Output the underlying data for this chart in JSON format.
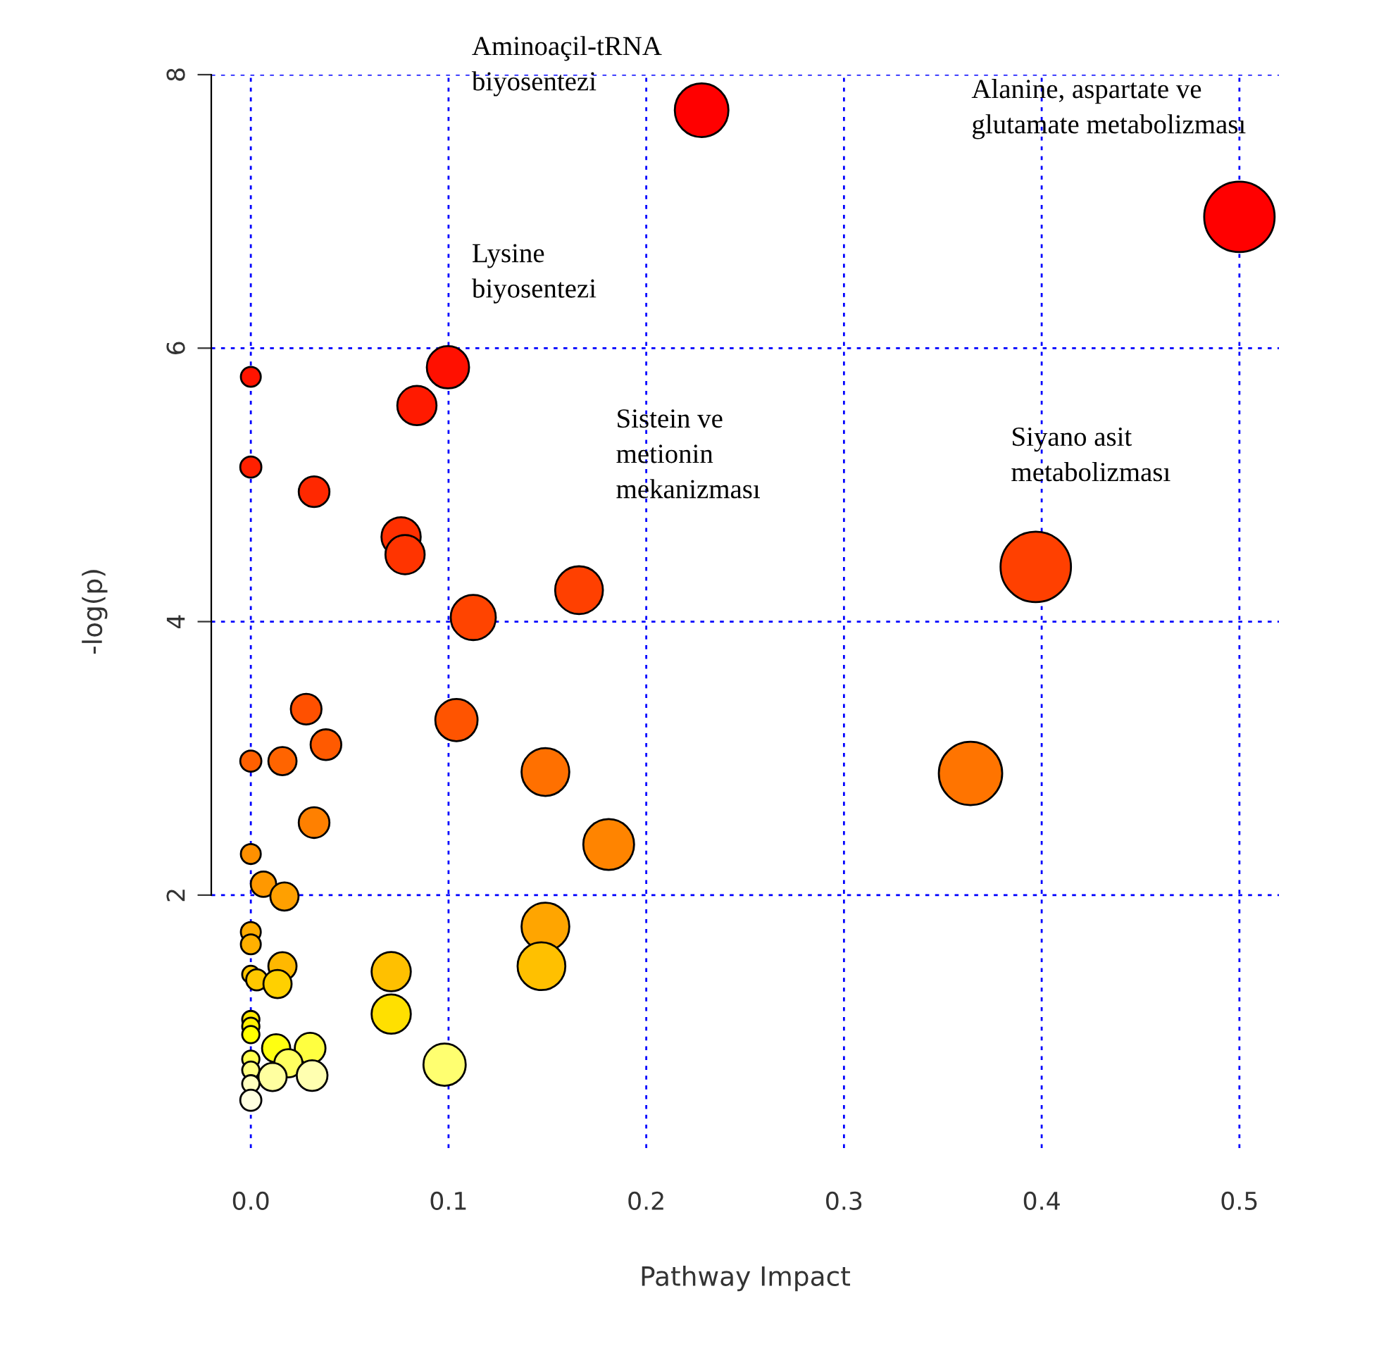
{
  "chart_data": {
    "type": "bubble",
    "xlabel": "Pathway Impact",
    "ylabel": "-log(p)",
    "x": [
      0.228,
      0.5,
      0.0997,
      0.084,
      0.0,
      0.0,
      0.032,
      0.076,
      0.078,
      0.166,
      0.1125,
      0.397,
      0.028,
      0.038,
      0.104,
      0.0,
      0.016,
      0.149,
      0.364,
      0.032,
      0.181,
      0.0,
      0.0064,
      0.017,
      0.149,
      0.0,
      0.0,
      0.016,
      0.071,
      0.147,
      0.0,
      0.003,
      0.0135,
      0.071,
      0.0,
      0.0,
      0.0,
      0.0128,
      0.03,
      0.019,
      0.098,
      0.0,
      0.0,
      0.011,
      0.031,
      0.0,
      0.0
    ],
    "values": [
      7.74,
      6.96,
      5.86,
      5.58,
      5.79,
      5.13,
      4.95,
      4.62,
      4.49,
      4.23,
      4.03,
      4.4,
      3.36,
      3.1,
      3.28,
      2.98,
      2.98,
      2.9,
      2.89,
      2.53,
      2.37,
      2.3,
      2.08,
      1.99,
      1.77,
      1.73,
      1.64,
      1.48,
      1.44,
      1.48,
      1.42,
      1.38,
      1.35,
      1.13,
      1.09,
      1.04,
      0.98,
      0.88,
      0.88,
      0.77,
      0.76,
      0.8,
      0.72,
      0.67,
      0.68,
      0.62,
      0.5
    ],
    "sizes": [
      0.58,
      1,
      0.36,
      0.31,
      0.08,
      0.09,
      0.19,
      0.31,
      0.31,
      0.46,
      0.41,
      1,
      0.19,
      0.19,
      0.36,
      0.09,
      0.16,
      0.46,
      0.81,
      0.19,
      0.52,
      0.08,
      0.13,
      0.16,
      0.46,
      0.08,
      0.08,
      0.16,
      0.31,
      0.46,
      0.06,
      0.09,
      0.16,
      0.31,
      0.06,
      0.06,
      0.06,
      0.16,
      0.19,
      0.16,
      0.36,
      0.06,
      0.06,
      0.16,
      0.19,
      0.06,
      0.09
    ],
    "colors": [
      "#ff0000",
      "#ff0000",
      "#ff1000",
      "#ff1a00",
      "#ff1400",
      "#ff2000",
      "#ff2800",
      "#ff3000",
      "#ff3400",
      "#ff4000",
      "#ff4400",
      "#ff4000",
      "#ff5000",
      "#ff5a00",
      "#ff5400",
      "#ff6000",
      "#ff6400",
      "#ff7000",
      "#ff7400",
      "#ff8000",
      "#ff8400",
      "#ff9000",
      "#ff9800",
      "#ffa000",
      "#ffa500",
      "#ffac00",
      "#ffb000",
      "#ffb800",
      "#ffc000",
      "#ffc000",
      "#ffc400",
      "#ffc800",
      "#ffd000",
      "#ffe000",
      "#ffe800",
      "#fff000",
      "#ffff00",
      "#ffff10",
      "#ffff40",
      "#ffff60",
      "#ffff70",
      "#ffff50",
      "#ffff80",
      "#ffffa0",
      "#ffffb0",
      "#ffffc0",
      "#ffffe0"
    ],
    "xlim": [
      -0.02,
      0.52
    ],
    "ylim": [
      0.15,
      8.0
    ],
    "xticks": [
      {
        "value": 0.0,
        "label": "0.0"
      },
      {
        "value": 0.1,
        "label": "0.1"
      },
      {
        "value": 0.2,
        "label": "0.2"
      },
      {
        "value": 0.3,
        "label": "0.3"
      },
      {
        "value": 0.4,
        "label": "0.4"
      },
      {
        "value": 0.5,
        "label": "0.5"
      }
    ],
    "yticks": [
      2,
      4,
      6,
      8
    ],
    "grid": true,
    "marker": "circle",
    "annotations": [
      "Aminoaçil-tRNA\nbiyosentezi",
      "Alanine, aspartate ve\nglutamate metabolizması",
      "Lysine\nbiyosentezi",
      "Sistein ve\nmetionin\nmekanizması",
      "Siyano asit\nmetabolizması"
    ]
  }
}
